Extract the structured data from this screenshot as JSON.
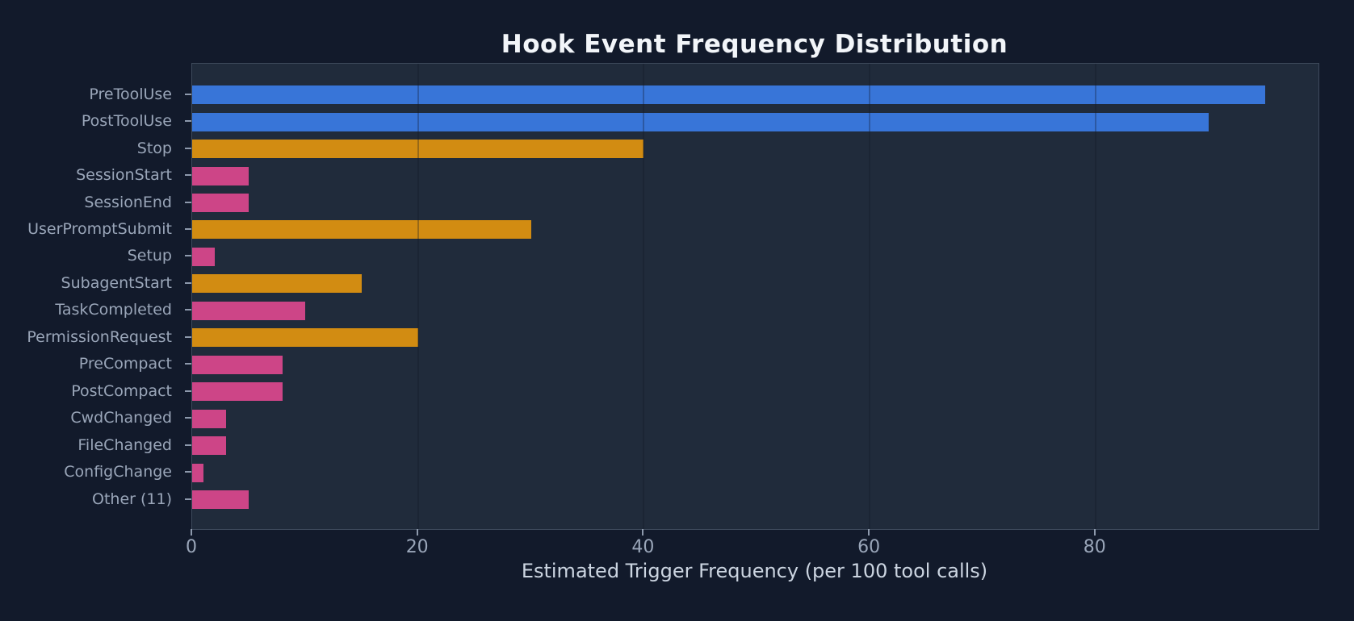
{
  "chart_data": {
    "type": "bar",
    "orientation": "horizontal",
    "title": "Hook Event Frequency Distribution",
    "xlabel": "Estimated Trigger Frequency (per 100 tool calls)",
    "categories": [
      "PreToolUse",
      "PostToolUse",
      "Stop",
      "SessionStart",
      "SessionEnd",
      "UserPromptSubmit",
      "Setup",
      "SubagentStart",
      "TaskCompleted",
      "PermissionRequest",
      "PreCompact",
      "PostCompact",
      "CwdChanged",
      "FileChanged",
      "ConfigChange",
      "Other (11)"
    ],
    "values": [
      95,
      90,
      40,
      5,
      5,
      30,
      2,
      15,
      10,
      20,
      8,
      8,
      3,
      3,
      1,
      5
    ],
    "bar_colors": [
      "#3875d8",
      "#3875d8",
      "#d28c12",
      "#cd4587",
      "#cd4587",
      "#d28c12",
      "#cd4587",
      "#d28c12",
      "#cd4587",
      "#d28c12",
      "#cd4587",
      "#cd4587",
      "#cd4587",
      "#cd4587",
      "#cd4587",
      "#cd4587"
    ],
    "x_ticks": [
      0,
      20,
      40,
      60,
      80
    ],
    "xlim": [
      0,
      99.75
    ],
    "grid": "vertical, drawn over bars",
    "legend": null
  },
  "theme": {
    "background": "#121a2b",
    "plot_background": "#202b3b",
    "grid_color": "rgba(15,22,38,0.30)",
    "spine_color": "#3e4a5c",
    "tick_color": "#8d99ac",
    "tick_label_color": "#9aa6b9",
    "category_label_color": "#9aa6b9",
    "title_color": "#f2f5f9",
    "xlabel_color": "#ccd5e1",
    "palette": {
      "blue": "#3875d8",
      "orange": "#d28c12",
      "pink": "#cd4587"
    }
  }
}
